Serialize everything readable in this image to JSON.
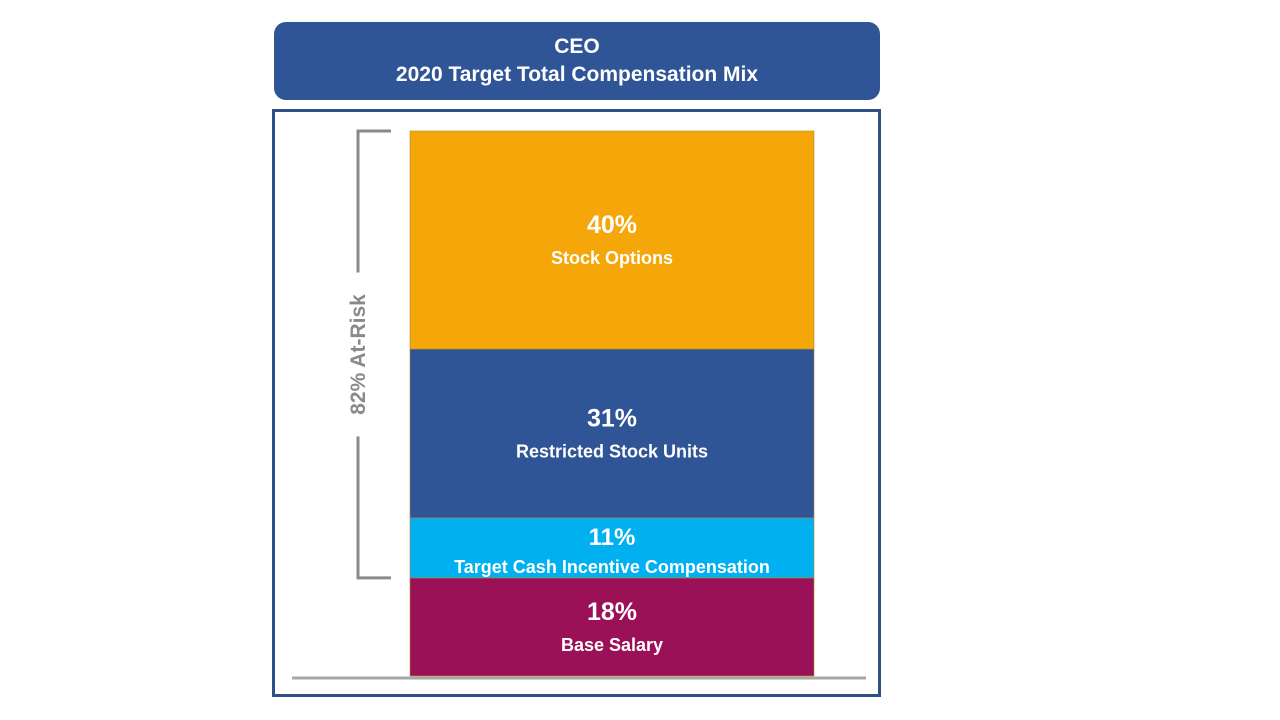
{
  "title": {
    "line1": "CEO",
    "line2": "2020 Target Total Compensation Mix"
  },
  "chart_data": {
    "type": "bar",
    "stacked": true,
    "title": "CEO 2020 Target Total Compensation Mix",
    "categories": [
      "CEO"
    ],
    "unit": "%",
    "ylim": [
      0,
      100
    ],
    "series": [
      {
        "name": "Base Salary",
        "value": 18,
        "label": "18%",
        "color": "#9b1158"
      },
      {
        "name": "Target Cash Incentive Compensation",
        "value": 11,
        "label": "11%",
        "color": "#00b0f0"
      },
      {
        "name": "Restricted Stock Units",
        "value": 31,
        "label": "31%",
        "color": "#2f5597"
      },
      {
        "name": "Stock Options",
        "value": 40,
        "label": "40%",
        "color": "#f5a70a"
      }
    ],
    "annotation": {
      "text": "82% At-Risk",
      "covers": [
        "Target Cash Incentive Compensation",
        "Restricted Stock Units",
        "Stock Options"
      ],
      "color": "#8a8a8a"
    }
  },
  "colors": {
    "title_bg": "#2f5597",
    "frame_border": "#2f4f86",
    "baseline": "#a6a6a6"
  }
}
